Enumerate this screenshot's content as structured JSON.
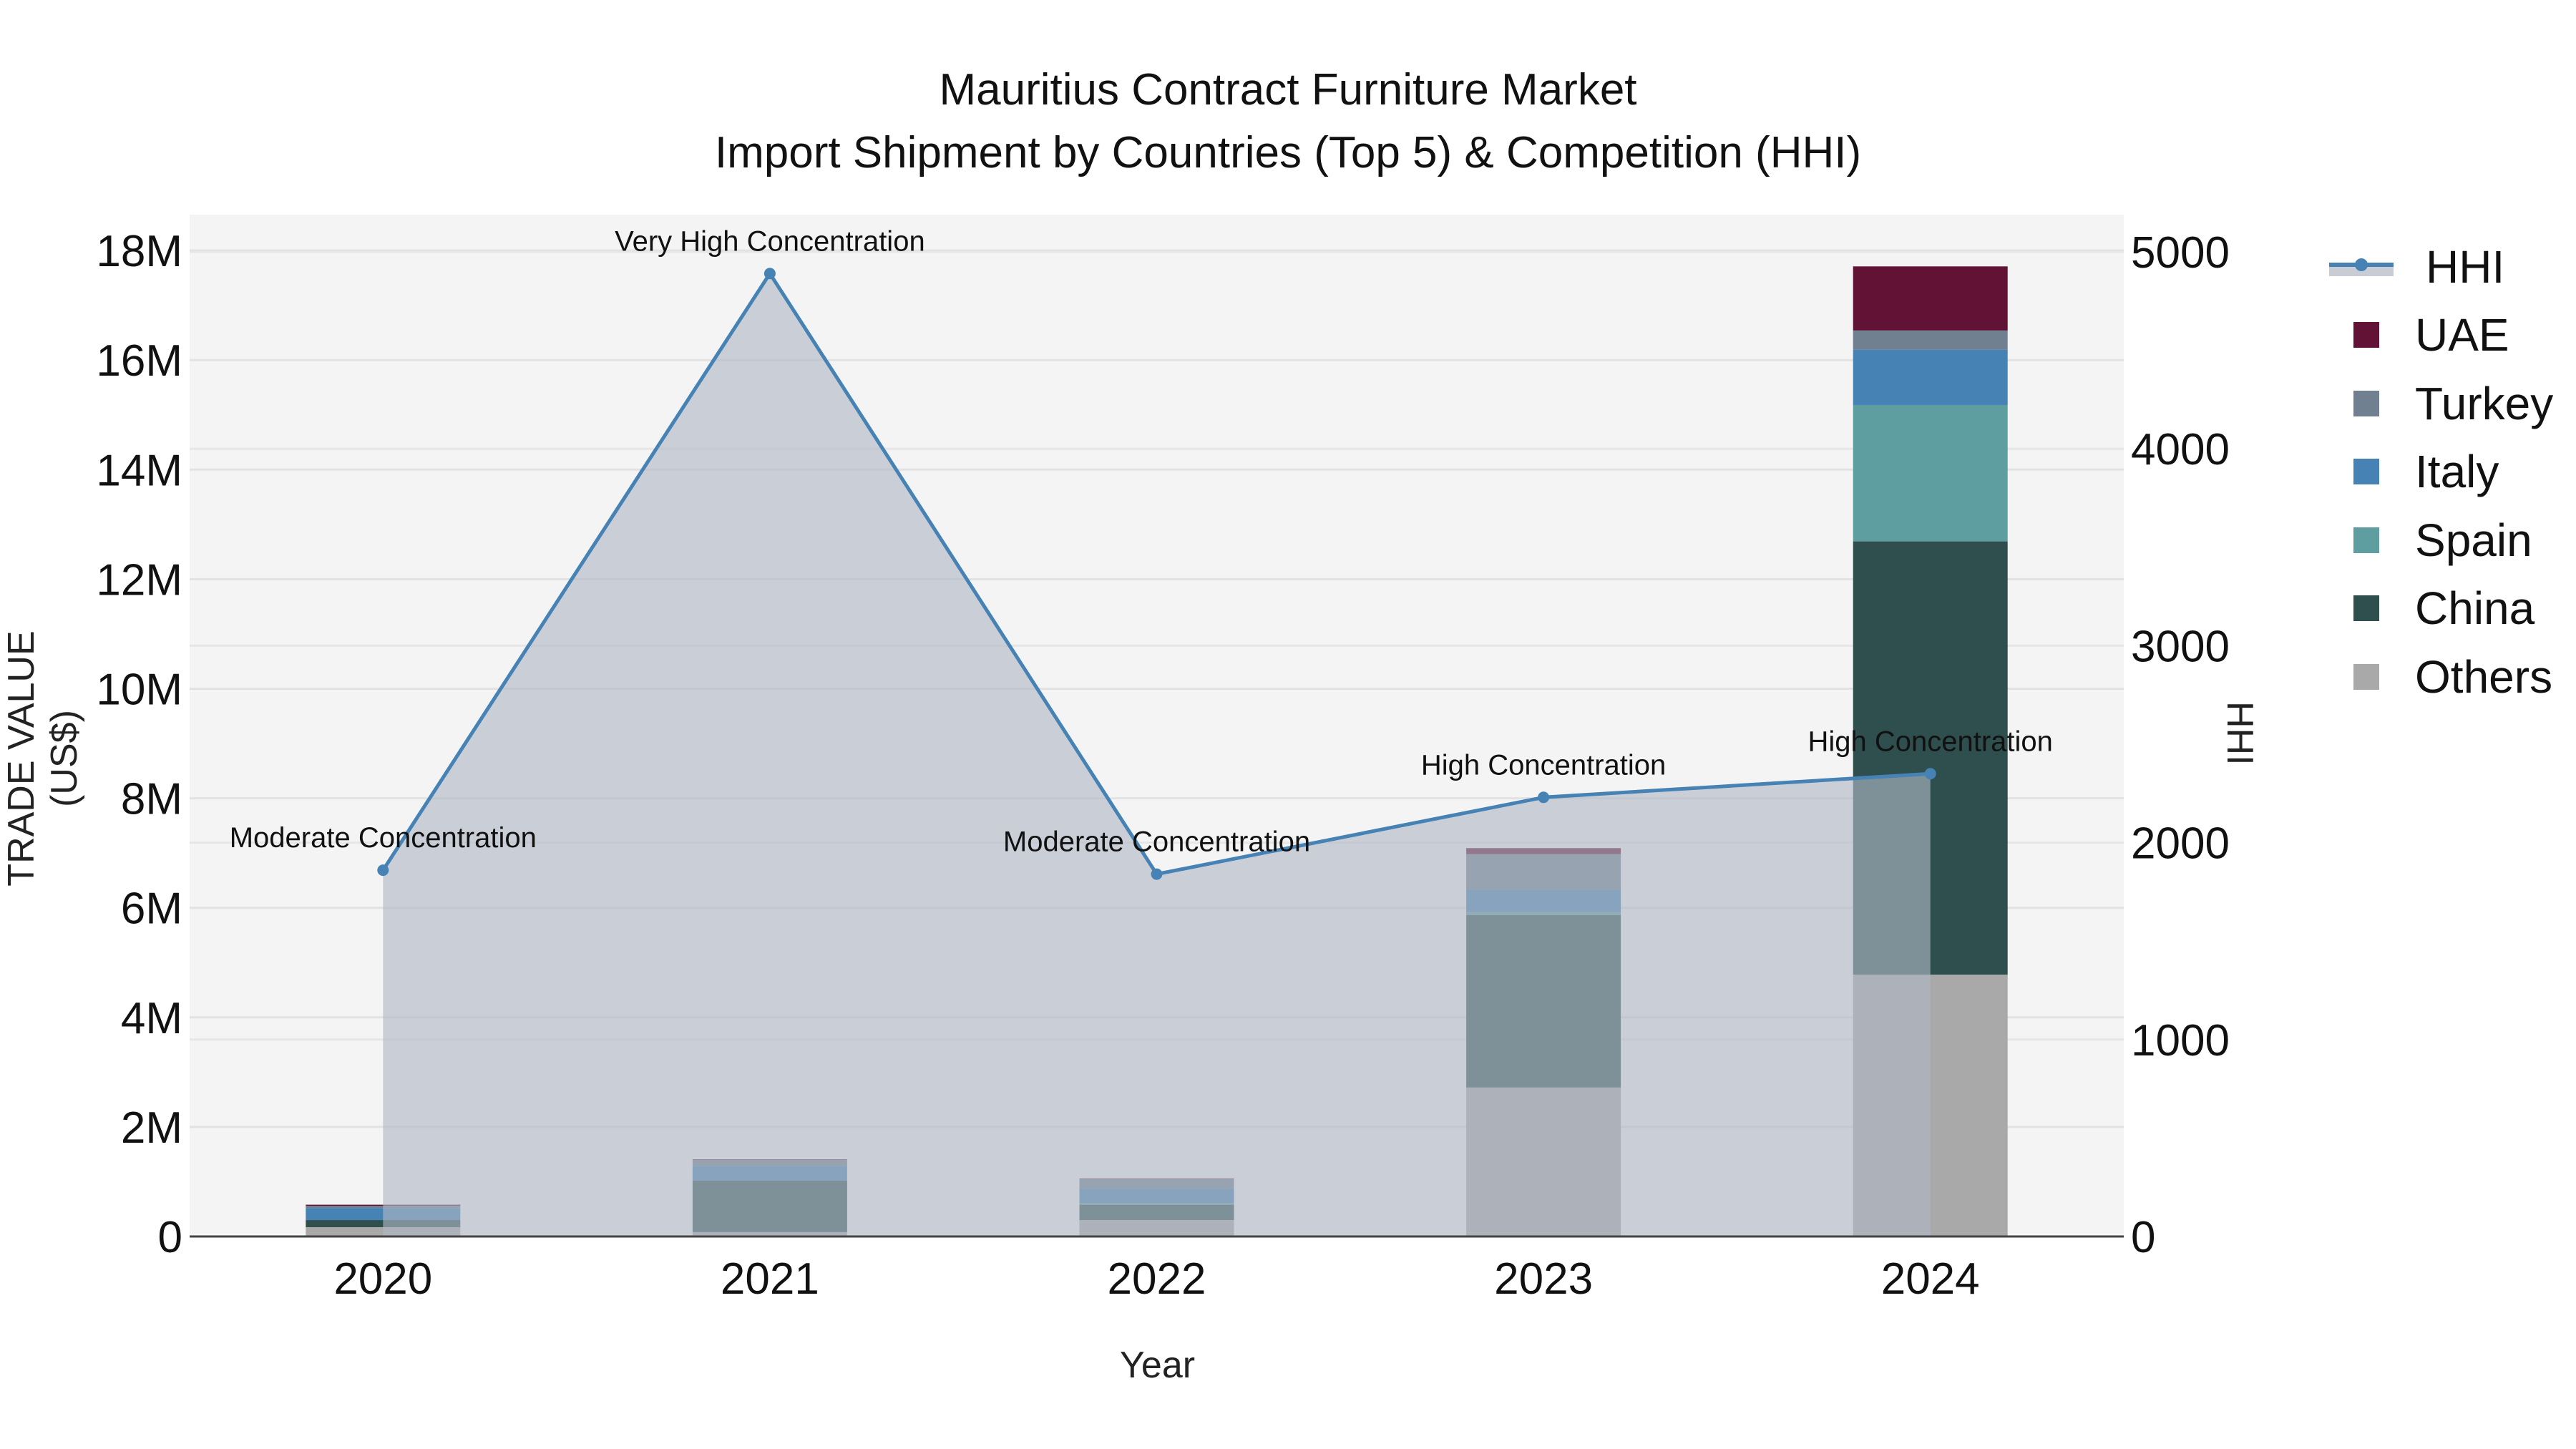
{
  "title": {
    "line1": "Mauritius Contract Furniture Market",
    "line2": "Import Shipment by Countries (Top 5) & Competition (HHI)"
  },
  "axes": {
    "x_title": "Year",
    "y_left_title": "TRADE VALUE (US$)",
    "y_right_title": "HHI",
    "y_left_ticks": [
      "0",
      "2M",
      "4M",
      "6M",
      "8M",
      "10M",
      "12M",
      "14M",
      "16M",
      "18M"
    ],
    "y_right_ticks": [
      "0",
      "1000",
      "2000",
      "3000",
      "4000",
      "5000"
    ]
  },
  "legend": [
    {
      "name": "HHI",
      "type": "line",
      "color": "#4682B4"
    },
    {
      "name": "UAE",
      "type": "bar",
      "color": "#621234"
    },
    {
      "name": "Turkey",
      "type": "bar",
      "color": "#708090"
    },
    {
      "name": "Italy",
      "type": "bar",
      "color": "#4682B4"
    },
    {
      "name": "Spain",
      "type": "bar",
      "color": "#5F9EA0"
    },
    {
      "name": "China",
      "type": "bar",
      "color": "#2F4F4F"
    },
    {
      "name": "Others",
      "type": "bar",
      "color": "#A9A9A9"
    }
  ],
  "chart_data": {
    "type": "bar",
    "subtype": "stacked bar + line (dual axis)",
    "title": "Mauritius Contract Furniture Market — Import Shipment by Countries (Top 5) & Competition (HHI)",
    "xlabel": "Year",
    "ylabel": "TRADE VALUE (US$)",
    "y2label": "HHI",
    "ylim": [
      0,
      18500000
    ],
    "y2lim": [
      0,
      5140
    ],
    "grid": true,
    "legend_position": "right",
    "categories": [
      "2020",
      "2021",
      "2022",
      "2023",
      "2024"
    ],
    "series": [
      {
        "name": "Others",
        "color": "#A9A9A9",
        "values": [
          170000,
          80000,
          300000,
          2720000,
          4780000
        ]
      },
      {
        "name": "China",
        "color": "#2F4F4F",
        "values": [
          130000,
          940000,
          280000,
          3150000,
          7910000
        ]
      },
      {
        "name": "Spain",
        "color": "#5F9EA0",
        "values": [
          0,
          0,
          30000,
          50000,
          2490000
        ]
      },
      {
        "name": "Italy",
        "color": "#4682B4",
        "values": [
          220000,
          270000,
          260000,
          410000,
          1010000
        ]
      },
      {
        "name": "Turkey",
        "color": "#708090",
        "values": [
          40000,
          110000,
          180000,
          650000,
          350000
        ]
      },
      {
        "name": "UAE",
        "color": "#621234",
        "values": [
          20000,
          10000,
          10000,
          110000,
          1170000
        ]
      }
    ],
    "hhi": {
      "name": "HHI",
      "axis": "right",
      "color": "#4682B4",
      "values": [
        1860,
        4890,
        1840,
        2230,
        2350
      ],
      "annotations": [
        "Moderate Concentration",
        "Very High Concentration",
        "Moderate Concentration",
        "High Concentration",
        "High Concentration"
      ]
    }
  }
}
